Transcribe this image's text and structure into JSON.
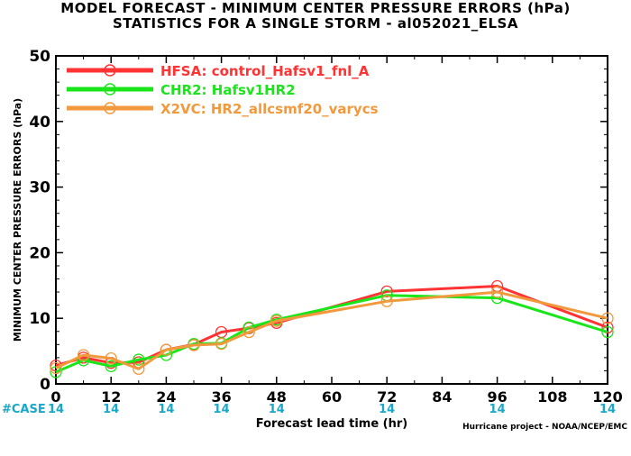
{
  "header": {
    "title_line1": "MODEL FORECAST - MINIMUM CENTER PRESSURE ERRORS (hPa)",
    "title_line2": "STATISTICS FOR A SINGLE STORM - al052021_ELSA"
  },
  "footer": {
    "case_label": "#CASE",
    "credit": "Hurricane project - NOAA/NCEP/EMC"
  },
  "chart_data": {
    "type": "line",
    "xlabel": "Forecast lead time (hr)",
    "ylabel": "MINIMUM CENTER PRESSURE ERRORS (hPa)",
    "xlim": [
      0,
      120
    ],
    "ylim": [
      0,
      50
    ],
    "xticks": [
      0,
      12,
      24,
      36,
      48,
      60,
      72,
      84,
      96,
      108,
      120
    ],
    "yticks": [
      0,
      10,
      20,
      30,
      40,
      50
    ],
    "grid": false,
    "legend_position": "top-left",
    "case_counts": [
      {
        "x": 0,
        "n": "14"
      },
      {
        "x": 12,
        "n": "14"
      },
      {
        "x": 24,
        "n": "14"
      },
      {
        "x": 36,
        "n": "14"
      },
      {
        "x": 48,
        "n": "14"
      },
      {
        "x": 72,
        "n": "14"
      },
      {
        "x": 96,
        "n": "14"
      },
      {
        "x": 120,
        "n": "14"
      }
    ],
    "series": [
      {
        "name": "HFSA: control_Hafsv1_fnl_A",
        "color": "#ff3333",
        "points": [
          [
            0,
            2.8
          ],
          [
            6,
            4.0
          ],
          [
            12,
            3.2
          ],
          [
            18,
            3.3
          ],
          [
            24,
            5.2
          ],
          [
            30,
            6.0
          ],
          [
            36,
            7.9
          ],
          [
            42,
            8.5
          ],
          [
            48,
            9.3
          ],
          [
            72,
            14.1
          ],
          [
            96,
            14.9
          ],
          [
            120,
            8.6
          ]
        ]
      },
      {
        "name": "CHR2: Hafsv1HR2",
        "color": "#19e619",
        "points": [
          [
            0,
            1.8
          ],
          [
            6,
            3.6
          ],
          [
            12,
            2.7
          ],
          [
            18,
            3.7
          ],
          [
            24,
            4.4
          ],
          [
            30,
            6.1
          ],
          [
            36,
            6.2
          ],
          [
            42,
            8.6
          ],
          [
            48,
            9.8
          ],
          [
            72,
            13.5
          ],
          [
            96,
            13.1
          ],
          [
            120,
            7.9
          ]
        ]
      },
      {
        "name": "X2VC: HR2_allcsmf20_varycs",
        "color": "#f2993d",
        "points": [
          [
            0,
            2.4
          ],
          [
            6,
            4.4
          ],
          [
            12,
            3.9
          ],
          [
            18,
            2.3
          ],
          [
            24,
            5.2
          ],
          [
            30,
            5.9
          ],
          [
            36,
            6.1
          ],
          [
            42,
            7.9
          ],
          [
            48,
            9.6
          ],
          [
            72,
            12.6
          ],
          [
            96,
            14.0
          ],
          [
            120,
            10.0
          ]
        ]
      }
    ]
  }
}
